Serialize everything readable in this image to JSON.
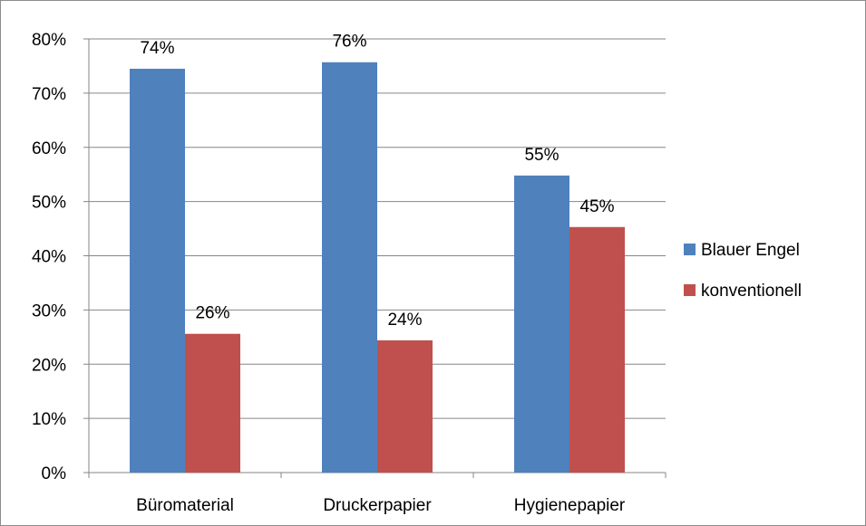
{
  "chart_data": {
    "type": "bar",
    "categories": [
      "Büromaterial",
      "Druckerpapier",
      "Hygienepapier"
    ],
    "series": [
      {
        "name": "Blauer Engel",
        "color": "#4f81bd",
        "values": [
          74.5,
          75.7,
          54.8
        ],
        "labels": [
          "74%",
          "76%",
          "55%"
        ]
      },
      {
        "name": "konventionell",
        "color": "#c0504d",
        "values": [
          25.6,
          24.4,
          45.3
        ],
        "labels": [
          "26%",
          "24%",
          "45%"
        ]
      }
    ],
    "ylim": [
      0,
      80
    ],
    "yticks": [
      "0%",
      "10%",
      "20%",
      "30%",
      "40%",
      "50%",
      "60%",
      "70%",
      "80%"
    ],
    "ytick_values": [
      0,
      10,
      20,
      30,
      40,
      50,
      60,
      70,
      80
    ],
    "grid": true,
    "legend_position": "right"
  }
}
